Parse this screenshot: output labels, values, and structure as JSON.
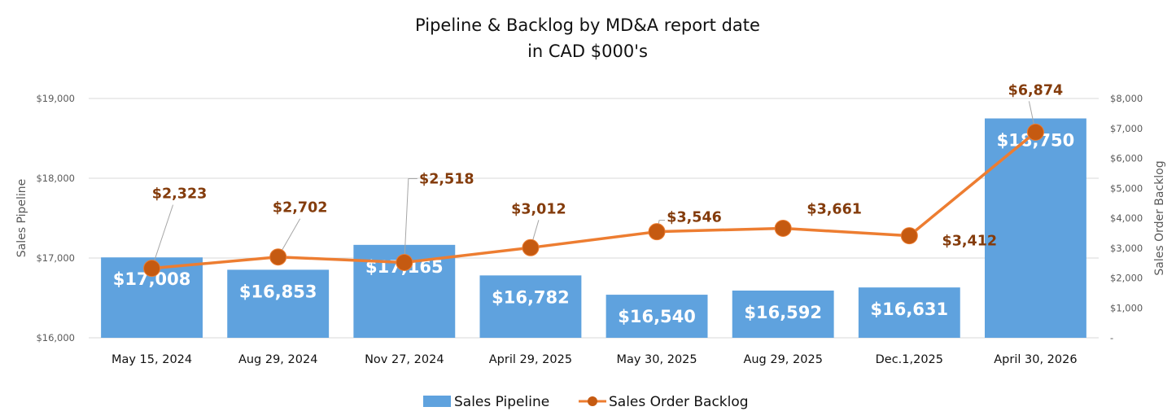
{
  "chart_data": {
    "type": "bar+line",
    "title": "Pipeline & Backlog by MD&A report date",
    "subtitle": "in CAD $000's",
    "categories": [
      "May 15, 2024",
      "Aug 29, 2024",
      "Nov 27, 2024",
      "April 29, 2025",
      "May 30, 2025",
      "Aug 29, 2025",
      "Dec.1,2025",
      "April 30, 2026"
    ],
    "series": [
      {
        "name": "Sales Pipeline",
        "type": "bar",
        "axis": "left",
        "color": "#5fa2de",
        "values": [
          17008,
          16853,
          17165,
          16782,
          16540,
          16592,
          16631,
          18750
        ],
        "labels": [
          "$17,008",
          "$16,853",
          "$17,165",
          "$16,782",
          "$16,540",
          "$16,592",
          "$16,631",
          "$18,750"
        ]
      },
      {
        "name": "Sales Order Backlog",
        "type": "line",
        "axis": "right",
        "color": "#ed7d31",
        "marker_color": "#c55a11",
        "label_color": "#843c0c",
        "values": [
          2323,
          2702,
          2518,
          3012,
          3546,
          3661,
          3412,
          6874
        ],
        "labels": [
          "$2,323",
          "$2,702",
          "$2,518",
          "$3,012",
          "$3,546",
          "$3,661",
          "$3,412",
          "$6,874"
        ]
      }
    ],
    "y_left": {
      "label": "Sales Pipeline",
      "range": [
        16000,
        19000
      ],
      "ticks": [
        16000,
        17000,
        18000,
        19000
      ],
      "tick_labels": [
        "$16,000",
        "$17,000",
        "$18,000",
        "$19,000"
      ]
    },
    "y_right": {
      "label": "Sales Order Backlog",
      "range": [
        0,
        8000
      ],
      "ticks": [
        0,
        1000,
        2000,
        3000,
        4000,
        5000,
        6000,
        7000,
        8000
      ],
      "tick_labels": [
        "-",
        "$1,000",
        "$2,000",
        "$3,000",
        "$4,000",
        "$5,000",
        "$6,000",
        "$7,000",
        "$8,000"
      ]
    },
    "grid": true,
    "legend": {
      "position": "bottom",
      "entries": [
        "Sales Pipeline",
        "Sales Order Backlog"
      ]
    }
  }
}
